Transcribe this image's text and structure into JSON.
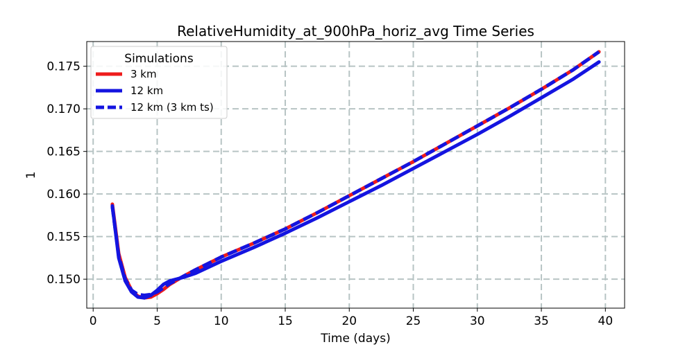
{
  "chart_data": {
    "type": "line",
    "title": "RelativeHumidity_at_900hPa_horiz_avg Time Series",
    "xlabel": "Time (days)",
    "ylabel": "1",
    "xlim": [
      -0.5,
      41.5
    ],
    "ylim": [
      0.1466,
      0.1779
    ],
    "xticks": [
      0,
      5,
      10,
      15,
      20,
      25,
      30,
      35,
      40
    ],
    "yticks": [
      0.15,
      0.155,
      0.16,
      0.165,
      0.17,
      0.175
    ],
    "xtick_labels": [
      "0",
      "5",
      "10",
      "15",
      "20",
      "25",
      "30",
      "35",
      "40"
    ],
    "ytick_labels": [
      "0.150",
      "0.155",
      "0.160",
      "0.165",
      "0.170",
      "0.175"
    ],
    "grid": true,
    "legend": {
      "title": "Simulations",
      "placement": "top-left"
    },
    "series": [
      {
        "name": "3 km",
        "color": "#ee1c1c",
        "style": "solid",
        "x": [
          1.5,
          2.0,
          2.5,
          3.0,
          3.5,
          4.0,
          4.5,
          5.0,
          5.5,
          6.0,
          7.0,
          8.0,
          10.0,
          12.5,
          15.0,
          17.5,
          20.0,
          22.5,
          25.0,
          27.5,
          30.0,
          32.5,
          35.0,
          37.5,
          39.5
        ],
        "y": [
          0.1588,
          0.153,
          0.1502,
          0.1487,
          0.148,
          0.1478,
          0.1479,
          0.1483,
          0.1488,
          0.1494,
          0.1503,
          0.1511,
          0.1526,
          0.1542,
          0.1559,
          0.1578,
          0.1598,
          0.1618,
          0.1638,
          0.1659,
          0.168,
          0.1701,
          0.1723,
          0.1746,
          0.1767
        ]
      },
      {
        "name": "12 km",
        "color": "#1414e0",
        "style": "solid",
        "x": [
          1.5,
          2.0,
          2.5,
          3.0,
          3.5,
          4.0,
          4.5,
          5.0,
          5.5,
          6.0,
          7.0,
          8.0,
          10.0,
          12.5,
          15.0,
          17.5,
          20.0,
          22.5,
          25.0,
          27.5,
          30.0,
          32.5,
          35.0,
          37.5,
          39.5
        ],
        "y": [
          0.1586,
          0.1525,
          0.1498,
          0.1485,
          0.1479,
          0.1478,
          0.1481,
          0.1487,
          0.1494,
          0.1498,
          0.1502,
          0.1507,
          0.1521,
          0.1537,
          0.1554,
          0.1572,
          0.1591,
          0.161,
          0.163,
          0.165,
          0.167,
          0.1691,
          0.1713,
          0.1735,
          0.1755
        ]
      },
      {
        "name": "12 km (3 km ts)",
        "color": "#1414e0",
        "style": "dashed",
        "x": [
          1.5,
          2.0,
          2.5,
          3.0,
          3.5,
          4.0,
          4.5,
          5.0,
          5.5,
          6.0,
          7.0,
          8.0,
          10.0,
          12.5,
          15.0,
          17.5,
          20.0,
          22.5,
          25.0,
          27.5,
          30.0,
          32.5,
          35.0,
          37.5,
          39.5
        ],
        "y": [
          0.1585,
          0.1527,
          0.15,
          0.1487,
          0.1482,
          0.1481,
          0.1482,
          0.1485,
          0.149,
          0.1495,
          0.1503,
          0.1511,
          0.1526,
          0.1542,
          0.1559,
          0.1578,
          0.1598,
          0.1618,
          0.1638,
          0.1659,
          0.168,
          0.1701,
          0.1723,
          0.1746,
          0.1767
        ]
      }
    ]
  }
}
